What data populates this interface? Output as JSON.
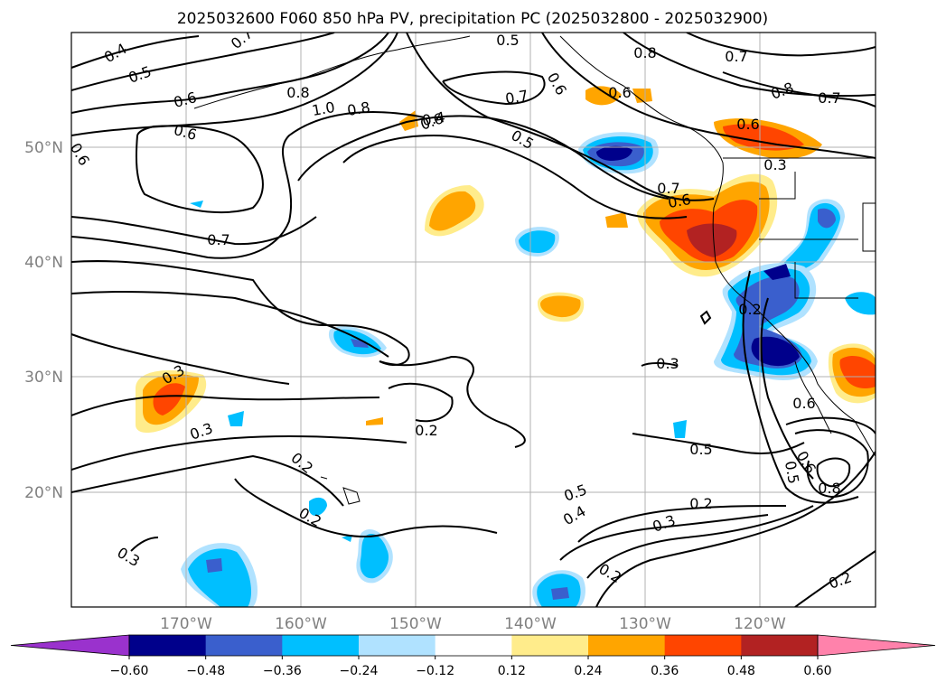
{
  "title": "2025032600 F060 850 hPa PV, precipitation PC (2025032800 - 2025032900)",
  "map": {
    "lat_labels": [
      "50°N",
      "40°N",
      "30°N",
      "20°N"
    ],
    "lon_labels": [
      "170°W",
      "160°W",
      "150°W",
      "140°W",
      "130°W",
      "120°W"
    ],
    "gridlines": true,
    "contour_labels": [
      "0.4",
      "0.5",
      "0.6",
      "0.7",
      "0.6",
      "0.8",
      "1.0",
      "0.8",
      "0.6",
      "0.5",
      "0.4",
      "0.7",
      "0.6",
      "0.8",
      "0.7",
      "0.8",
      "0.7",
      "0.6",
      "0.5",
      "0.6",
      "0.7",
      "0.6",
      "0.3",
      "0.7",
      "0.3",
      "0.3",
      "0.2",
      "0.2",
      "0.2",
      "0.3",
      "0.2",
      "0.5",
      "0.4",
      "0.5",
      "0.2",
      "0.3",
      "0.2",
      "0.3",
      "0.5",
      "0.6",
      "0.8",
      "0.2",
      "0.6",
      "0.6"
    ]
  },
  "colorbar": {
    "ticks": [
      "−0.60",
      "−0.48",
      "−0.36",
      "−0.24",
      "−0.12",
      "0.12",
      "0.24",
      "0.36",
      "0.48",
      "0.60"
    ],
    "colors": [
      "#9a32cd",
      "#00008b",
      "#3a5fcd",
      "#00bfff",
      "#b0e2ff",
      "#ffffff",
      "#ffec8b",
      "#ffa500",
      "#ff4500",
      "#b22222",
      "#ff82ab"
    ],
    "extend": "both"
  },
  "colors": {
    "purple": "#9a32cd",
    "navy": "#00008b",
    "royal": "#3a5fcd",
    "sky": "#00bfff",
    "lightblue": "#b0e2ff",
    "yellow": "#ffec8b",
    "orange": "#ffa500",
    "redorange": "#ff4500",
    "firebrick": "#b22222",
    "pink": "#ff82ab"
  }
}
